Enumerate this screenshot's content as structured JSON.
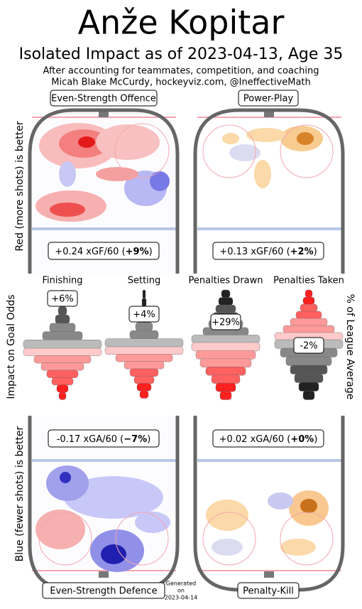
{
  "title": "Anže Kopitar",
  "subtitle": "Isolated Impact as of 2023-04-13, Age 35",
  "notes": [
    "After accounting for teammates, competition, and coaching",
    "Micah Blake McCurdy, hockeyviz.com, @IneffectiveMath"
  ],
  "side_labels": {
    "top": "Red (more shots) is better",
    "middle": "Impact on Goal Odds",
    "right": "% of League Average",
    "bottom": "Blue (fewer shots) is better"
  },
  "rinks": [
    {
      "label": "Even-Strength Offence",
      "stat": "+0.24 xGF/60 (",
      "pct": "+9%",
      "end": ")"
    },
    {
      "label": "Power-Play",
      "stat": "+0.13 xGF/60 (",
      "pct": "+2%",
      "end": ")"
    },
    {
      "label": "Even-Strength Defence",
      "stat": "-0.17 xGA/60 (",
      "pct": "−7%",
      "end": ")"
    },
    {
      "label": "Penalty-Kill",
      "stat": "+0.02 xGA/60 (",
      "pct": "+0%",
      "end": ")"
    }
  ],
  "violins": [
    {
      "label": "Finishing",
      "value": "+6%"
    },
    {
      "label": "Setting",
      "value": "+4%"
    },
    {
      "label": "Penalties Drawn",
      "value": "+29%"
    },
    {
      "label": "Penalties Taken",
      "value": "-2%"
    }
  ],
  "generated": [
    "Generated",
    "on",
    "2023-04-14"
  ]
}
